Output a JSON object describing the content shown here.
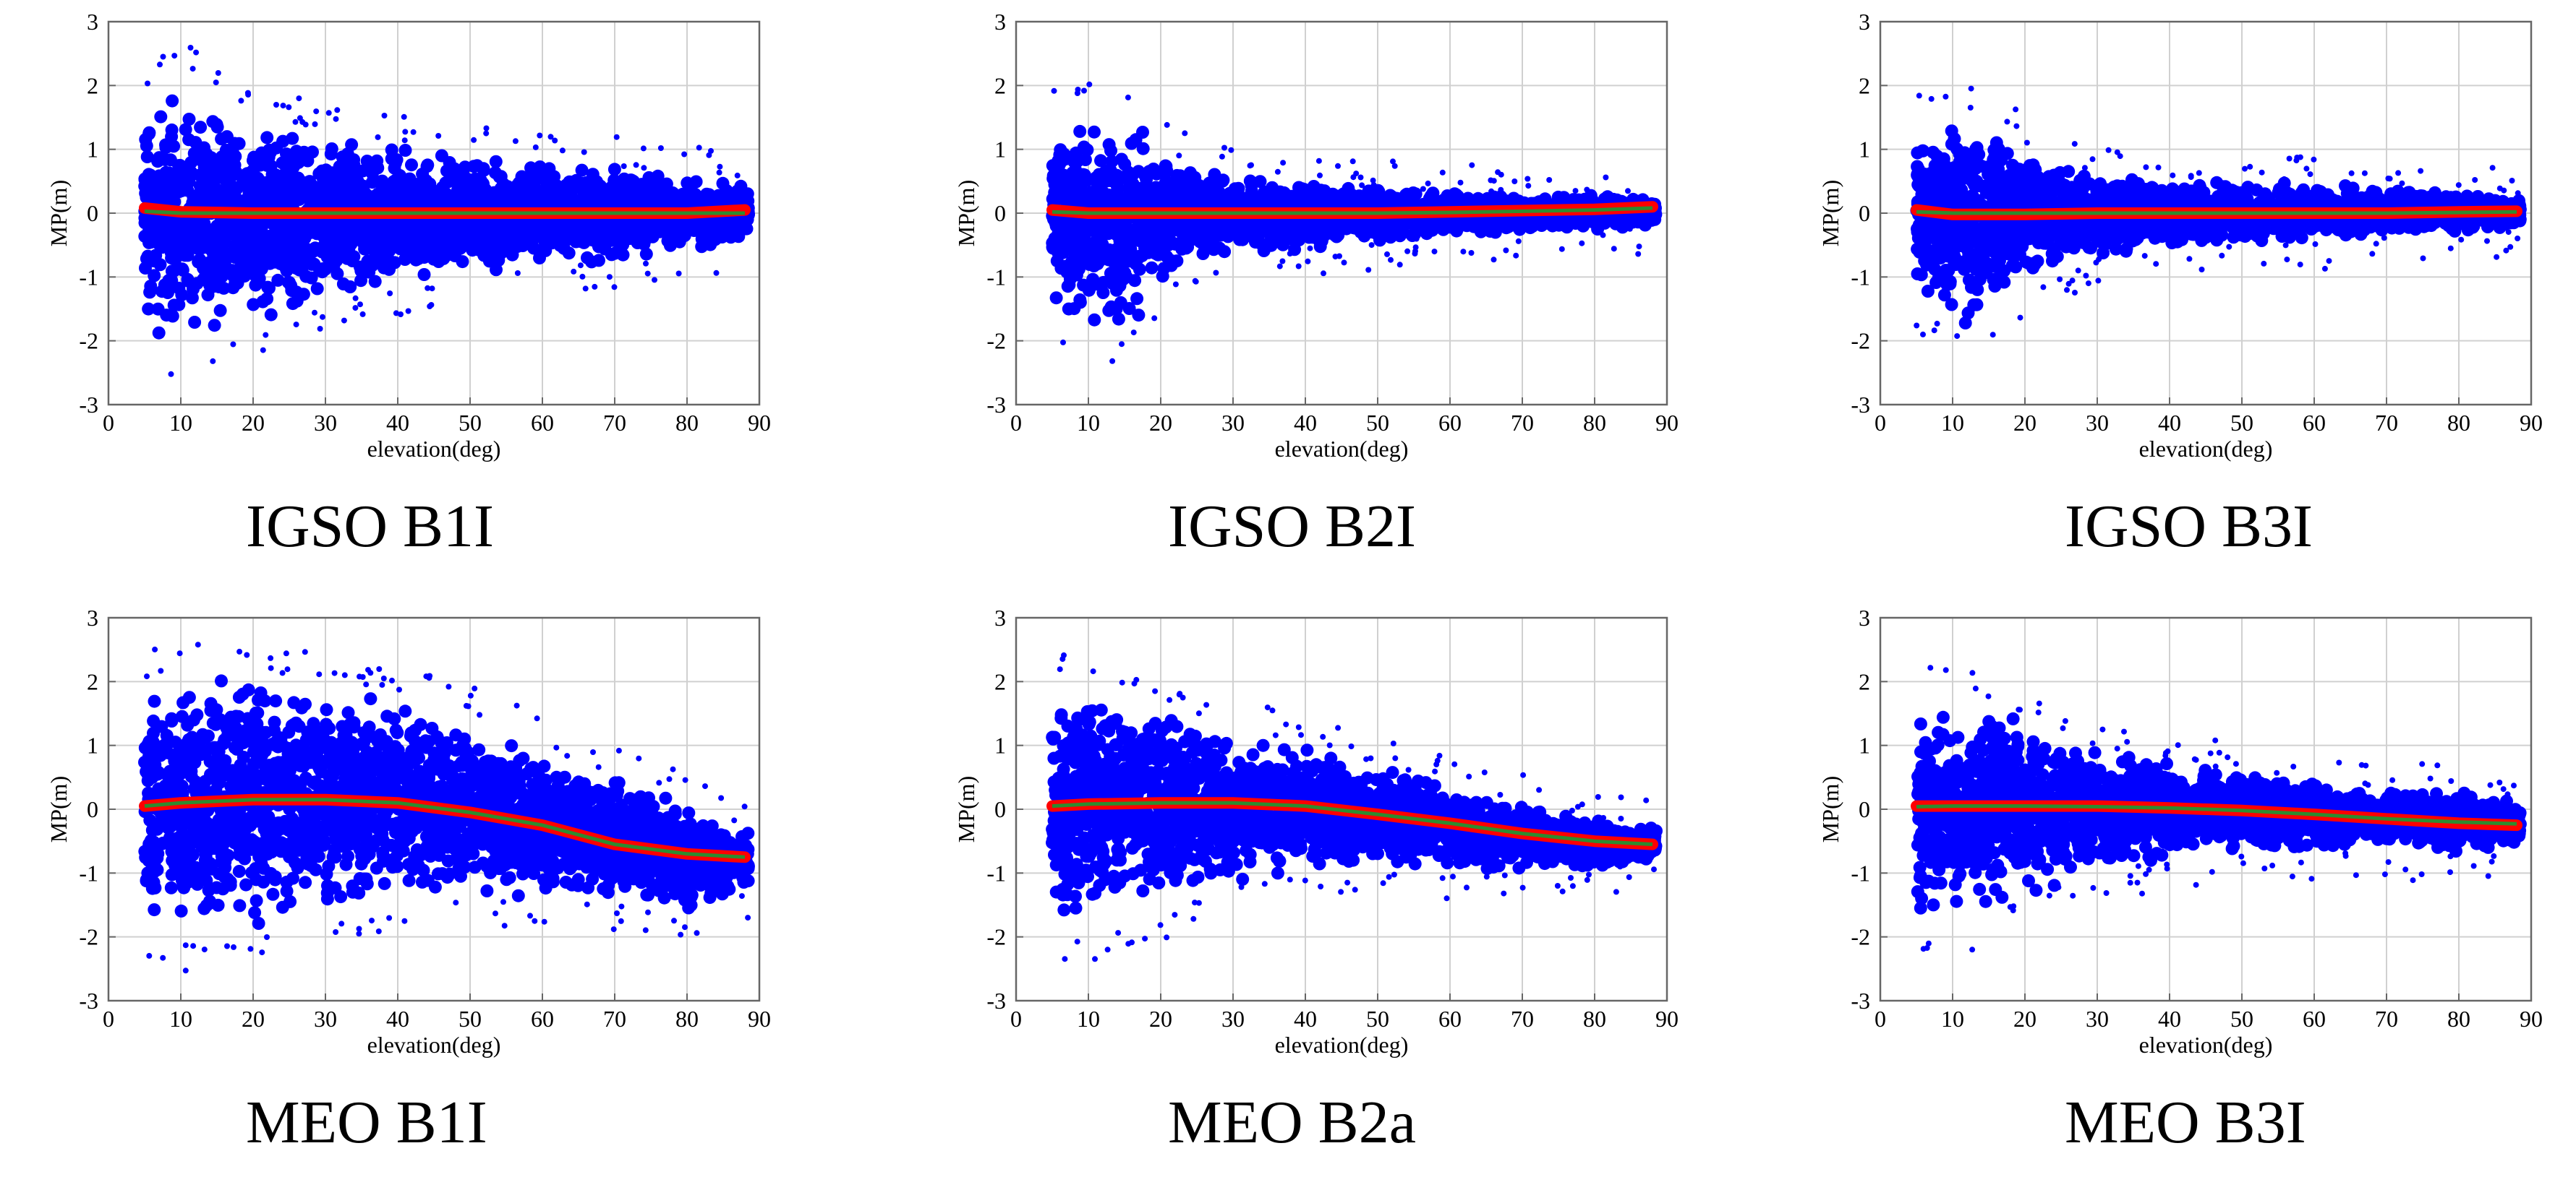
{
  "figure": {
    "panels": [
      {
        "caption": "IGSO B1I"
      },
      {
        "caption": "IGSO B2I"
      },
      {
        "caption": "IGSO B3I"
      },
      {
        "caption": "MEO B1I"
      },
      {
        "caption": "MEO B2a"
      },
      {
        "caption": "MEO B3I"
      }
    ]
  },
  "colors": {
    "scatter": "#0000ff",
    "mean_line": "#ff0000",
    "fit_line": "#2e8b2e",
    "grid": "#d0d0d0",
    "axis": "#666666"
  },
  "chart_data": [
    {
      "type": "scatter",
      "title": "IGSO B1I",
      "xlabel": "elevation(deg)",
      "ylabel": "MP(m)",
      "xlim": [
        0,
        90
      ],
      "ylim": [
        -3,
        3
      ],
      "xticks": [
        0,
        10,
        20,
        30,
        40,
        50,
        60,
        70,
        80,
        90
      ],
      "yticks": [
        -3,
        -2,
        -1,
        0,
        1,
        2,
        3
      ],
      "grid": true,
      "series": [
        {
          "name": "MP scatter upper envelope",
          "x": [
            5,
            10,
            15,
            20,
            30,
            40,
            50,
            60,
            70,
            80,
            88
          ],
          "values": [
            1.9,
            2.2,
            2.0,
            1.6,
            1.3,
            1.1,
            0.95,
            0.85,
            0.75,
            0.6,
            0.5
          ]
        },
        {
          "name": "MP scatter lower envelope",
          "x": [
            5,
            10,
            15,
            20,
            30,
            40,
            50,
            60,
            70,
            80,
            88
          ],
          "values": [
            -2.0,
            -2.3,
            -2.1,
            -1.8,
            -1.4,
            -1.2,
            -1.0,
            -0.85,
            -0.75,
            -0.6,
            -0.5
          ]
        },
        {
          "name": "mean MP (red)",
          "x": [
            5,
            10,
            20,
            30,
            40,
            50,
            60,
            70,
            80,
            88
          ],
          "values": [
            0.08,
            0.02,
            0.0,
            0.0,
            0.0,
            0.0,
            0.0,
            0.0,
            0.0,
            0.05
          ]
        },
        {
          "name": "fitted MP (green)",
          "x": [
            5,
            10,
            20,
            30,
            40,
            50,
            60,
            70,
            80,
            88
          ],
          "values": [
            0.03,
            0.0,
            0.0,
            0.0,
            0.0,
            0.0,
            0.0,
            0.0,
            0.0,
            0.0
          ]
        }
      ]
    },
    {
      "type": "scatter",
      "title": "IGSO B2I",
      "xlabel": "elevation(deg)",
      "ylabel": "MP(m)",
      "xlim": [
        0,
        90
      ],
      "ylim": [
        -3,
        3
      ],
      "xticks": [
        0,
        10,
        20,
        30,
        40,
        50,
        60,
        70,
        80,
        90
      ],
      "yticks": [
        -3,
        -2,
        -1,
        0,
        1,
        2,
        3
      ],
      "grid": true,
      "series": [
        {
          "name": "MP scatter upper envelope",
          "x": [
            5,
            10,
            15,
            20,
            30,
            40,
            50,
            60,
            70,
            80,
            88
          ],
          "values": [
            1.5,
            1.7,
            1.6,
            1.0,
            0.6,
            0.5,
            0.4,
            0.35,
            0.3,
            0.3,
            0.25
          ]
        },
        {
          "name": "MP scatter lower envelope",
          "x": [
            5,
            10,
            15,
            20,
            30,
            40,
            50,
            60,
            70,
            80,
            88
          ],
          "values": [
            -1.5,
            -2.0,
            -2.0,
            -1.1,
            -0.7,
            -0.55,
            -0.45,
            -0.35,
            -0.3,
            -0.25,
            -0.2
          ]
        },
        {
          "name": "mean MP (red)",
          "x": [
            5,
            10,
            20,
            30,
            40,
            50,
            60,
            70,
            80,
            88
          ],
          "values": [
            0.05,
            0.0,
            0.0,
            0.0,
            0.0,
            0.0,
            0.02,
            0.04,
            0.06,
            0.1
          ]
        },
        {
          "name": "fitted MP (green)",
          "x": [
            5,
            10,
            20,
            30,
            40,
            50,
            60,
            70,
            80,
            88
          ],
          "values": [
            0.02,
            0.0,
            0.0,
            0.0,
            0.0,
            0.0,
            0.01,
            0.03,
            0.05,
            0.08
          ]
        }
      ]
    },
    {
      "type": "scatter",
      "title": "IGSO B3I",
      "xlabel": "elevation(deg)",
      "ylabel": "MP(m)",
      "xlim": [
        0,
        90
      ],
      "ylim": [
        -3,
        3
      ],
      "xticks": [
        0,
        10,
        20,
        30,
        40,
        50,
        60,
        70,
        80,
        90
      ],
      "yticks": [
        -3,
        -2,
        -1,
        0,
        1,
        2,
        3
      ],
      "grid": true,
      "series": [
        {
          "name": "MP scatter upper envelope",
          "x": [
            5,
            10,
            15,
            20,
            30,
            40,
            50,
            60,
            70,
            80,
            88
          ],
          "values": [
            1.4,
            1.6,
            1.7,
            1.0,
            0.65,
            0.55,
            0.5,
            0.45,
            0.4,
            0.35,
            0.25
          ]
        },
        {
          "name": "MP scatter lower envelope",
          "x": [
            5,
            10,
            15,
            20,
            30,
            40,
            50,
            60,
            70,
            80,
            88
          ],
          "values": [
            -1.4,
            -1.7,
            -1.8,
            -1.1,
            -0.7,
            -0.6,
            -0.5,
            -0.45,
            -0.35,
            -0.3,
            -0.25
          ]
        },
        {
          "name": "mean MP (red)",
          "x": [
            5,
            10,
            20,
            30,
            40,
            50,
            60,
            70,
            80,
            88
          ],
          "values": [
            0.05,
            -0.02,
            -0.02,
            0.0,
            0.0,
            0.0,
            0.0,
            0.0,
            0.02,
            0.03
          ]
        },
        {
          "name": "fitted MP (green)",
          "x": [
            5,
            10,
            20,
            30,
            40,
            50,
            60,
            70,
            80,
            88
          ],
          "values": [
            0.02,
            0.0,
            0.0,
            0.0,
            0.0,
            0.0,
            0.0,
            0.0,
            0.01,
            0.02
          ]
        }
      ]
    },
    {
      "type": "scatter",
      "title": "MEO B1I",
      "xlabel": "elevation(deg)",
      "ylabel": "MP(m)",
      "xlim": [
        0,
        90
      ],
      "ylim": [
        -3,
        3
      ],
      "xticks": [
        0,
        10,
        20,
        30,
        40,
        50,
        60,
        70,
        80,
        90
      ],
      "yticks": [
        -3,
        -2,
        -1,
        0,
        1,
        2,
        3
      ],
      "grid": true,
      "series": [
        {
          "name": "MP scatter upper envelope",
          "x": [
            5,
            10,
            20,
            30,
            40,
            50,
            60,
            70,
            80,
            88
          ],
          "values": [
            2.0,
            2.2,
            2.2,
            2.0,
            1.8,
            1.5,
            1.0,
            0.5,
            0.1,
            -0.3
          ]
        },
        {
          "name": "MP scatter lower envelope",
          "x": [
            5,
            10,
            20,
            30,
            40,
            50,
            60,
            70,
            80,
            88
          ],
          "values": [
            -1.9,
            -2.1,
            -1.9,
            -1.7,
            -1.5,
            -1.4,
            -1.4,
            -1.5,
            -1.7,
            -1.3
          ]
        },
        {
          "name": "mean MP (red)",
          "x": [
            5,
            10,
            20,
            30,
            40,
            50,
            60,
            70,
            80,
            88
          ],
          "values": [
            0.05,
            0.1,
            0.15,
            0.15,
            0.1,
            -0.05,
            -0.25,
            -0.55,
            -0.7,
            -0.75
          ]
        },
        {
          "name": "fitted MP (green)",
          "x": [
            5,
            10,
            20,
            30,
            40,
            50,
            60,
            70,
            80,
            88
          ],
          "values": [
            0.05,
            0.1,
            0.15,
            0.15,
            0.1,
            -0.05,
            -0.25,
            -0.55,
            -0.7,
            -0.75
          ]
        }
      ]
    },
    {
      "type": "scatter",
      "title": "MEO B2a",
      "xlabel": "elevation(deg)",
      "ylabel": "MP(m)",
      "xlim": [
        0,
        90
      ],
      "ylim": [
        -3,
        3
      ],
      "xticks": [
        0,
        10,
        20,
        30,
        40,
        50,
        60,
        70,
        80,
        90
      ],
      "yticks": [
        -3,
        -2,
        -1,
        0,
        1,
        2,
        3
      ],
      "grid": true,
      "series": [
        {
          "name": "MP scatter upper envelope",
          "x": [
            5,
            10,
            20,
            30,
            40,
            50,
            60,
            70,
            80,
            88
          ],
          "values": [
            1.9,
            2.1,
            1.7,
            1.3,
            1.0,
            0.7,
            0.35,
            0.1,
            -0.15,
            -0.3
          ]
        },
        {
          "name": "MP scatter lower envelope",
          "x": [
            5,
            10,
            20,
            30,
            40,
            50,
            60,
            70,
            80,
            88
          ],
          "values": [
            -1.9,
            -2.0,
            -1.6,
            -1.2,
            -1.0,
            -0.95,
            -0.95,
            -0.95,
            -0.95,
            -0.8
          ]
        },
        {
          "name": "mean MP (red)",
          "x": [
            5,
            10,
            20,
            30,
            40,
            50,
            60,
            70,
            80,
            88
          ],
          "values": [
            0.05,
            0.08,
            0.1,
            0.1,
            0.05,
            -0.08,
            -0.22,
            -0.38,
            -0.5,
            -0.55
          ]
        },
        {
          "name": "fitted MP (green)",
          "x": [
            5,
            10,
            20,
            30,
            40,
            50,
            60,
            70,
            80,
            88
          ],
          "values": [
            0.05,
            0.08,
            0.1,
            0.1,
            0.05,
            -0.08,
            -0.22,
            -0.38,
            -0.5,
            -0.55
          ]
        }
      ]
    },
    {
      "type": "scatter",
      "title": "MEO B3I",
      "xlabel": "elevation(deg)",
      "ylabel": "MP(m)",
      "xlim": [
        0,
        90
      ],
      "ylim": [
        -3,
        3
      ],
      "xticks": [
        0,
        10,
        20,
        30,
        40,
        50,
        60,
        70,
        80,
        90
      ],
      "yticks": [
        -3,
        -2,
        -1,
        0,
        1,
        2,
        3
      ],
      "grid": true,
      "series": [
        {
          "name": "MP scatter upper envelope",
          "x": [
            5,
            10,
            20,
            30,
            40,
            50,
            60,
            70,
            80,
            88
          ],
          "values": [
            1.8,
            1.9,
            1.4,
            1.0,
            0.75,
            0.6,
            0.45,
            0.35,
            0.3,
            0.15
          ]
        },
        {
          "name": "MP scatter lower envelope",
          "x": [
            5,
            10,
            20,
            30,
            40,
            50,
            60,
            70,
            80,
            88
          ],
          "values": [
            -1.8,
            -1.9,
            -1.4,
            -1.0,
            -0.8,
            -0.7,
            -0.65,
            -0.65,
            -0.7,
            -0.6
          ]
        },
        {
          "name": "mean MP (red)",
          "x": [
            5,
            10,
            20,
            30,
            40,
            50,
            60,
            70,
            80,
            88
          ],
          "values": [
            0.05,
            0.05,
            0.05,
            0.05,
            0.02,
            -0.02,
            -0.08,
            -0.15,
            -0.22,
            -0.25
          ]
        },
        {
          "name": "fitted MP (green)",
          "x": [
            5,
            10,
            20,
            30,
            40,
            50,
            60,
            70,
            80,
            88
          ],
          "values": [
            0.04,
            0.05,
            0.05,
            0.04,
            0.02,
            -0.02,
            -0.08,
            -0.15,
            -0.2,
            -0.23
          ]
        }
      ]
    }
  ]
}
